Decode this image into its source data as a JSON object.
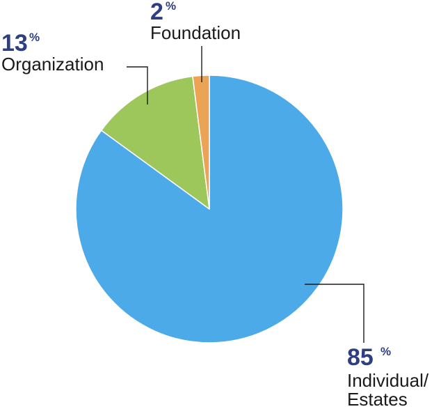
{
  "chart_data": {
    "type": "pie",
    "title": "",
    "categories": [
      "Individual/Estates",
      "Organization",
      "Foundation"
    ],
    "values": [
      85,
      13,
      2
    ],
    "unit": "%",
    "colors": [
      "#4daae8",
      "#9dc65b",
      "#eba456"
    ],
    "start_angle_deg": 0,
    "direction": "clockwise",
    "labels": [
      {
        "value": "85",
        "unit": "%",
        "lines": [
          "Individual/",
          "Estates"
        ]
      },
      {
        "value": "13",
        "unit": "%",
        "lines": [
          "Organization"
        ]
      },
      {
        "value": "2",
        "unit": "%",
        "lines": [
          "Foundation"
        ]
      }
    ]
  }
}
